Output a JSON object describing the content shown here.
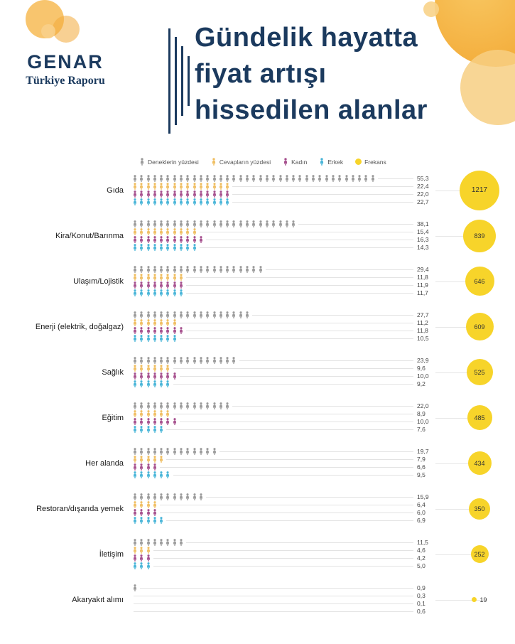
{
  "brand": {
    "name": "GENAR",
    "subtitle": "Türkiye Raporu"
  },
  "title": {
    "line1": "Gündelik hayatta",
    "line2": "fiyat artışı",
    "line3": "hissedilen alanlar"
  },
  "legend": {
    "items": [
      {
        "label": "Deneklerin yüzdesi",
        "color": "#9b9b9b",
        "shape": "person"
      },
      {
        "label": "Cevapların yüzdesi",
        "color": "#f0bf63",
        "shape": "person"
      },
      {
        "label": "Kadın",
        "color": "#a6508e",
        "shape": "person"
      },
      {
        "label": "Erkek",
        "color": "#49b5d8",
        "shape": "person"
      },
      {
        "label": "Frekans",
        "color": "#f7d42a",
        "shape": "circle"
      }
    ]
  },
  "chart_data": {
    "type": "pictogram-bar",
    "title": "Gündelik hayatta fiyat artışı hissedilen alanlar",
    "unit_per_icon": 1.5,
    "series": [
      "Deneklerin yüzdesi",
      "Cevapların yüzdesi",
      "Kadın",
      "Erkek"
    ],
    "series_colors": [
      "#9b9b9b",
      "#f0bf63",
      "#a6508e",
      "#49b5d8"
    ],
    "frequency_series": "Frekans",
    "frequency_color": "#f7d42a",
    "categories": [
      {
        "label": "Gıda",
        "values": [
          55.3,
          22.4,
          22.0,
          22.7
        ],
        "frequency": 1217
      },
      {
        "label": "Kira/Konut/Barınma",
        "values": [
          38.1,
          15.4,
          16.3,
          14.3
        ],
        "frequency": 839
      },
      {
        "label": "Ulaşım/Lojistik",
        "values": [
          29.4,
          11.8,
          11.9,
          11.7
        ],
        "frequency": 646
      },
      {
        "label": "Enerji (elektrik, doğalgaz)",
        "values": [
          27.7,
          11.2,
          11.8,
          10.5
        ],
        "frequency": 609
      },
      {
        "label": "Sağlık",
        "values": [
          23.9,
          9.6,
          10.0,
          9.2
        ],
        "frequency": 525
      },
      {
        "label": "Eğitim",
        "values": [
          22.0,
          8.9,
          10.0,
          7.6
        ],
        "frequency": 485
      },
      {
        "label": "Her alanda",
        "values": [
          19.7,
          7.9,
          6.6,
          9.5
        ],
        "frequency": 434
      },
      {
        "label": "Restoran/dışarıda yemek",
        "values": [
          15.9,
          6.4,
          6.0,
          6.9
        ],
        "frequency": 350
      },
      {
        "label": "İletişim",
        "values": [
          11.5,
          4.6,
          4.2,
          5.0
        ],
        "frequency": 252
      },
      {
        "label": "Akaryakıt alımı",
        "values": [
          0.9,
          0.3,
          0.1,
          0.6
        ],
        "frequency": 19
      }
    ]
  },
  "colors": {
    "navy": "#1b3a5e",
    "yellow": "#f7d42a",
    "orange": "#f5b041"
  }
}
